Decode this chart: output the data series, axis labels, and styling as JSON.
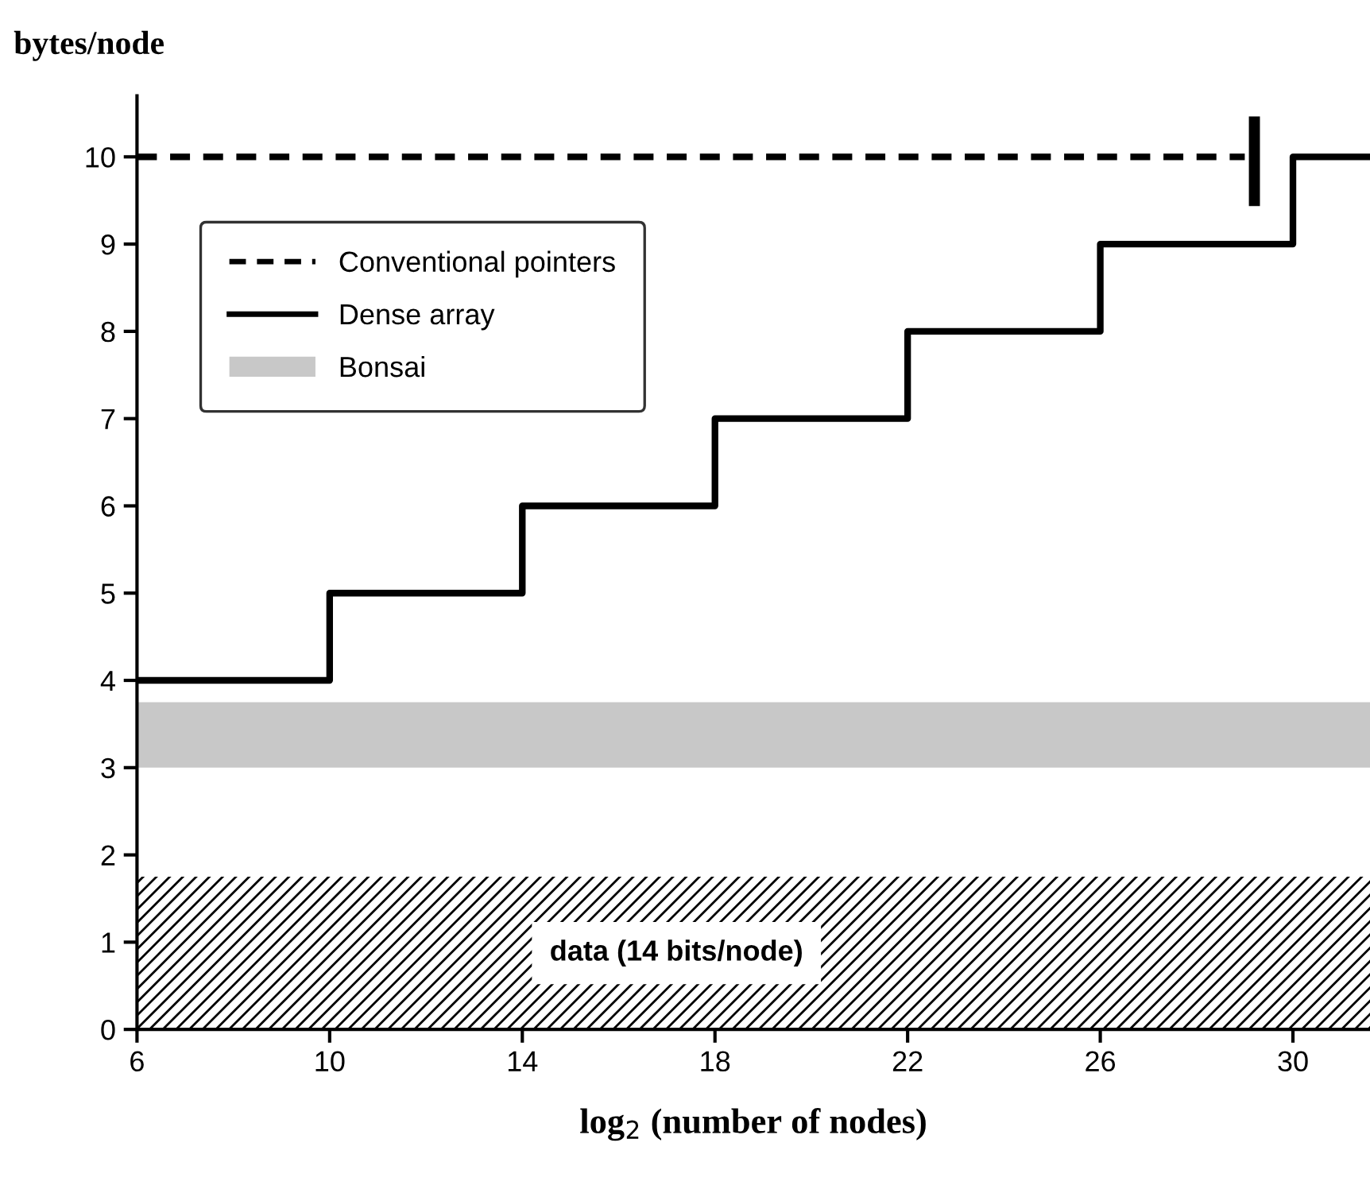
{
  "chart_data": {
    "type": "line",
    "ylabel": "bytes/node",
    "xlabel": "log$_{2}$ (number of nodes)",
    "series": [
      {
        "name": "Conventional pointers",
        "color": "#000000",
        "line_style": "dashed",
        "x": [
          6,
          29
        ],
        "values": [
          10,
          10
        ]
      },
      {
        "name": "Dense array",
        "type": "step",
        "color": "#000000",
        "line_style": "solid",
        "x": [
          6,
          10,
          14,
          18,
          22,
          26,
          30,
          31.6
        ],
        "values": [
          4,
          5,
          6,
          7,
          8,
          9,
          10,
          10
        ]
      },
      {
        "color": "#000000",
        "line_style": "solid",
        "x": [
          29.2,
          29.2
        ],
        "values": [
          9.5,
          10.4
        ]
      }
    ],
    "bands": [
      {
        "axis": "y",
        "from": 3,
        "to": 3.75,
        "label": "Bonsai",
        "color": "#c8c8c8"
      },
      {
        "axis": "y",
        "from": 0,
        "to": 1.75,
        "color": "#ffffff"
      }
    ],
    "annotations": [
      "data (14 bits/node)"
    ],
    "xlim": [
      6,
      31.6
    ],
    "xticks": [
      6,
      10,
      14,
      18,
      22,
      26,
      30
    ],
    "ylim": [
      0,
      10.7
    ],
    "yticks": [
      0,
      1,
      2,
      3,
      4,
      5,
      6,
      7,
      8,
      9,
      10
    ],
    "grid": false,
    "legend": "top left",
    "marker": "none"
  }
}
